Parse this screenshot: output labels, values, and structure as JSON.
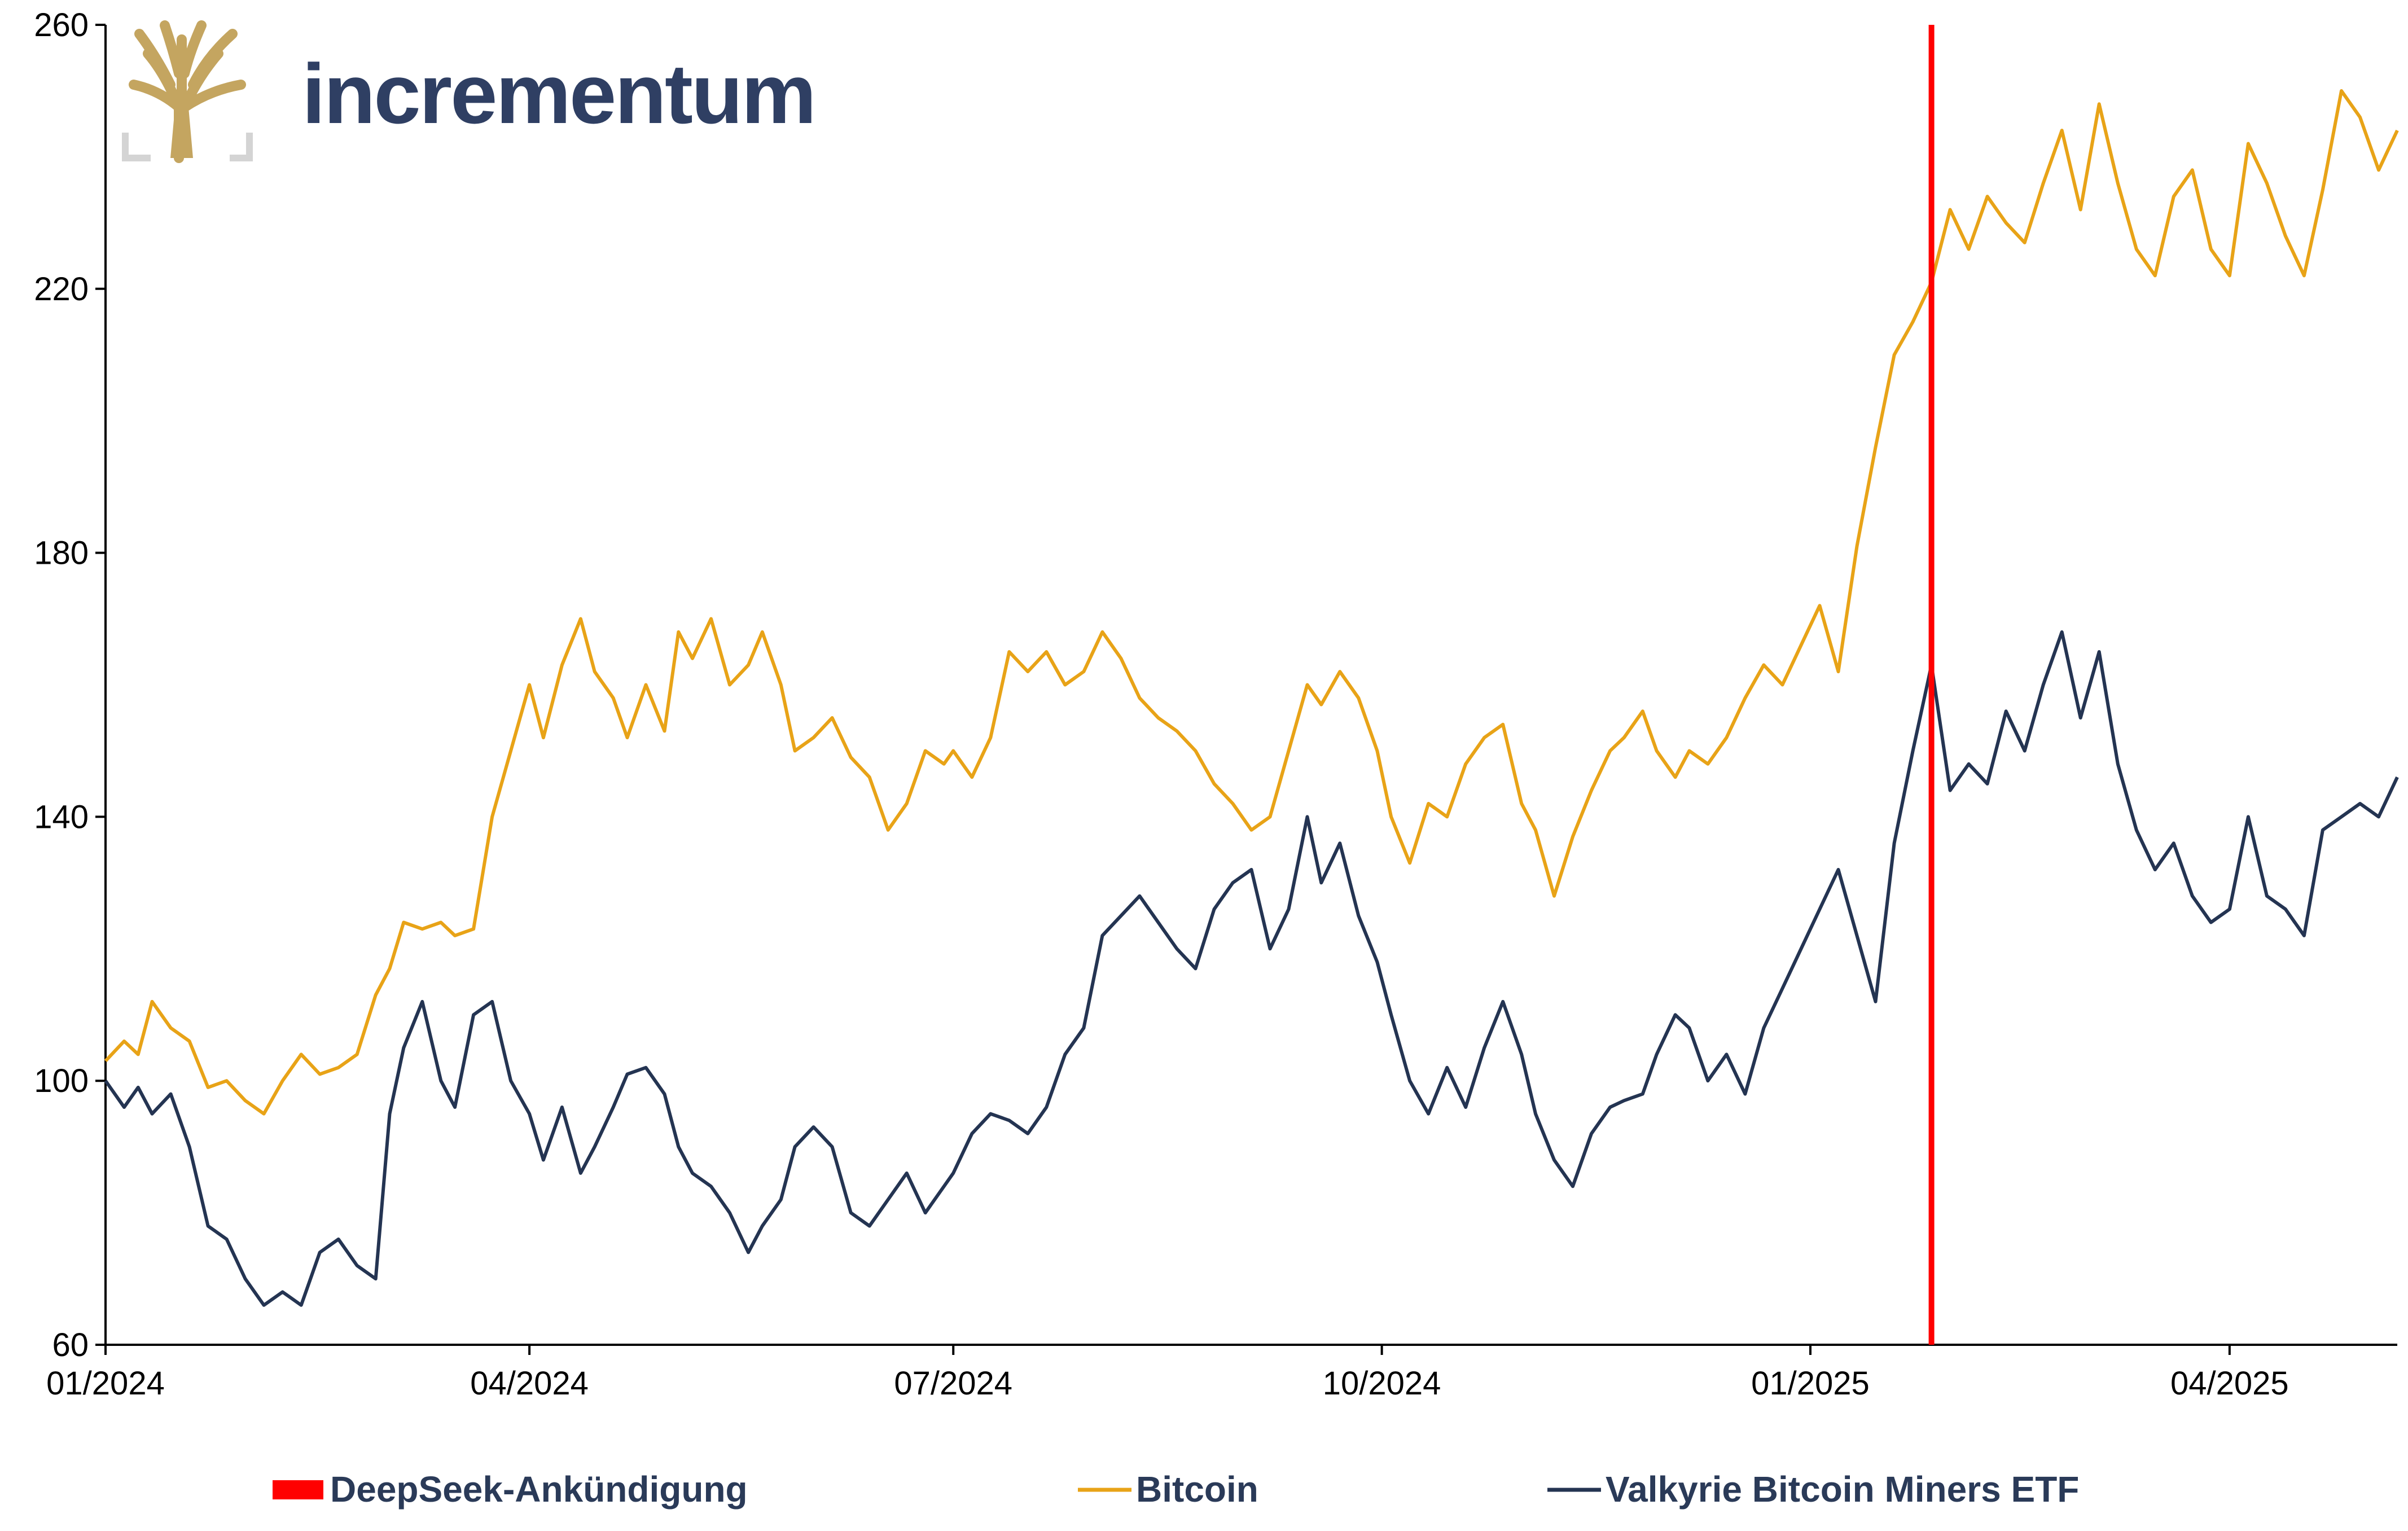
{
  "logo": {
    "brand_name": "incrementum",
    "brand_color": "#2f3f63",
    "tree_color": "#c4a560",
    "icon": "tree-logo-icon"
  },
  "chart_data": {
    "type": "line",
    "title": "",
    "xlabel": "",
    "ylabel": "",
    "ylim": [
      60,
      260
    ],
    "yticks": [
      60,
      100,
      140,
      180,
      220,
      260
    ],
    "x_range": [
      "2024-01-01",
      "2025-05-07"
    ],
    "xticks": [
      {
        "label": "01/2024",
        "date": "2024-01-01"
      },
      {
        "label": "04/2024",
        "date": "2024-04-01"
      },
      {
        "label": "07/2024",
        "date": "2024-07-01"
      },
      {
        "label": "10/2024",
        "date": "2024-10-01"
      },
      {
        "label": "01/2025",
        "date": "2025-01-01"
      },
      {
        "label": "04/2025",
        "date": "2025-04-01"
      }
    ],
    "grid": false,
    "legend_position": "bottom",
    "annotation": {
      "name": "DeepSeek-Ankündigung",
      "date": "2025-01-27",
      "color": "#ff0000"
    },
    "series": [
      {
        "name": "Bitcoin",
        "color": "#e8a317",
        "points": [
          [
            "2024-01-01",
            103
          ],
          [
            "2024-01-05",
            106
          ],
          [
            "2024-01-08",
            104
          ],
          [
            "2024-01-11",
            112
          ],
          [
            "2024-01-15",
            108
          ],
          [
            "2024-01-19",
            106
          ],
          [
            "2024-01-23",
            99
          ],
          [
            "2024-01-27",
            100
          ],
          [
            "2024-01-31",
            97
          ],
          [
            "2024-02-04",
            95
          ],
          [
            "2024-02-08",
            100
          ],
          [
            "2024-02-12",
            104
          ],
          [
            "2024-02-16",
            101
          ],
          [
            "2024-02-20",
            102
          ],
          [
            "2024-02-24",
            104
          ],
          [
            "2024-02-28",
            113
          ],
          [
            "2024-03-02",
            117
          ],
          [
            "2024-03-05",
            124
          ],
          [
            "2024-03-09",
            123
          ],
          [
            "2024-03-13",
            124
          ],
          [
            "2024-03-16",
            122
          ],
          [
            "2024-03-20",
            123
          ],
          [
            "2024-03-24",
            140
          ],
          [
            "2024-03-28",
            150
          ],
          [
            "2024-04-01",
            160
          ],
          [
            "2024-04-04",
            152
          ],
          [
            "2024-04-08",
            163
          ],
          [
            "2024-04-12",
            170
          ],
          [
            "2024-04-15",
            162
          ],
          [
            "2024-04-19",
            158
          ],
          [
            "2024-04-22",
            152
          ],
          [
            "2024-04-26",
            160
          ],
          [
            "2024-04-30",
            153
          ],
          [
            "2024-05-03",
            168
          ],
          [
            "2024-05-06",
            164
          ],
          [
            "2024-05-10",
            170
          ],
          [
            "2024-05-14",
            160
          ],
          [
            "2024-05-18",
            163
          ],
          [
            "2024-05-21",
            168
          ],
          [
            "2024-05-25",
            160
          ],
          [
            "2024-05-28",
            150
          ],
          [
            "2024-06-01",
            152
          ],
          [
            "2024-06-05",
            155
          ],
          [
            "2024-06-09",
            149
          ],
          [
            "2024-06-13",
            146
          ],
          [
            "2024-06-17",
            138
          ],
          [
            "2024-06-21",
            142
          ],
          [
            "2024-06-25",
            150
          ],
          [
            "2024-06-29",
            148
          ],
          [
            "2024-07-01",
            150
          ],
          [
            "2024-07-05",
            146
          ],
          [
            "2024-07-09",
            152
          ],
          [
            "2024-07-13",
            165
          ],
          [
            "2024-07-17",
            162
          ],
          [
            "2024-07-21",
            165
          ],
          [
            "2024-07-25",
            160
          ],
          [
            "2024-07-29",
            162
          ],
          [
            "2024-08-02",
            168
          ],
          [
            "2024-08-06",
            164
          ],
          [
            "2024-08-10",
            158
          ],
          [
            "2024-08-14",
            155
          ],
          [
            "2024-08-18",
            153
          ],
          [
            "2024-08-22",
            150
          ],
          [
            "2024-08-26",
            145
          ],
          [
            "2024-08-30",
            142
          ],
          [
            "2024-09-03",
            138
          ],
          [
            "2024-09-07",
            140
          ],
          [
            "2024-09-11",
            150
          ],
          [
            "2024-09-15",
            160
          ],
          [
            "2024-09-18",
            157
          ],
          [
            "2024-09-22",
            162
          ],
          [
            "2024-09-26",
            158
          ],
          [
            "2024-09-30",
            150
          ],
          [
            "2024-10-03",
            140
          ],
          [
            "2024-10-07",
            133
          ],
          [
            "2024-10-11",
            142
          ],
          [
            "2024-10-15",
            140
          ],
          [
            "2024-10-19",
            148
          ],
          [
            "2024-10-23",
            152
          ],
          [
            "2024-10-27",
            154
          ],
          [
            "2024-10-31",
            142
          ],
          [
            "2024-11-03",
            138
          ],
          [
            "2024-11-07",
            128
          ],
          [
            "2024-11-11",
            137
          ],
          [
            "2024-11-15",
            144
          ],
          [
            "2024-11-19",
            150
          ],
          [
            "2024-11-22",
            152
          ],
          [
            "2024-11-26",
            156
          ],
          [
            "2024-11-29",
            150
          ],
          [
            "2024-12-03",
            146
          ],
          [
            "2024-12-06",
            150
          ],
          [
            "2024-12-10",
            148
          ],
          [
            "2024-12-14",
            152
          ],
          [
            "2024-12-18",
            158
          ],
          [
            "2024-12-22",
            163
          ],
          [
            "2024-12-26",
            160
          ],
          [
            "2024-12-30",
            166
          ],
          [
            "2025-01-03",
            172
          ],
          [
            "2025-01-07",
            162
          ],
          [
            "2025-01-11",
            181
          ],
          [
            "2025-01-15",
            196
          ],
          [
            "2025-01-19",
            210
          ],
          [
            "2025-01-23",
            215
          ],
          [
            "2025-01-27",
            221
          ],
          [
            "2025-01-31",
            232
          ],
          [
            "2025-02-04",
            226
          ],
          [
            "2025-02-08",
            234
          ],
          [
            "2025-02-12",
            230
          ],
          [
            "2025-02-16",
            227
          ],
          [
            "2025-02-20",
            236
          ],
          [
            "2025-02-24",
            244
          ],
          [
            "2025-02-28",
            232
          ],
          [
            "2025-03-04",
            248
          ],
          [
            "2025-03-08",
            236
          ],
          [
            "2025-03-12",
            226
          ],
          [
            "2025-03-16",
            222
          ],
          [
            "2025-03-20",
            234
          ],
          [
            "2025-03-24",
            238
          ],
          [
            "2025-03-28",
            226
          ],
          [
            "2025-04-01",
            222
          ],
          [
            "2025-04-05",
            242
          ],
          [
            "2025-04-09",
            236
          ],
          [
            "2025-04-13",
            228
          ],
          [
            "2025-04-17",
            222
          ],
          [
            "2025-04-21",
            235
          ],
          [
            "2025-04-25",
            250
          ],
          [
            "2025-04-29",
            246
          ],
          [
            "2025-05-03",
            238
          ],
          [
            "2025-05-07",
            244
          ]
        ]
      },
      {
        "name": "Valkyrie Bitcoin Miners ETF",
        "color": "#243452",
        "points": [
          [
            "2024-01-01",
            100
          ],
          [
            "2024-01-05",
            96
          ],
          [
            "2024-01-08",
            99
          ],
          [
            "2024-01-11",
            95
          ],
          [
            "2024-01-15",
            98
          ],
          [
            "2024-01-19",
            90
          ],
          [
            "2024-01-23",
            78
          ],
          [
            "2024-01-27",
            76
          ],
          [
            "2024-01-31",
            70
          ],
          [
            "2024-02-04",
            66
          ],
          [
            "2024-02-08",
            68
          ],
          [
            "2024-02-12",
            66
          ],
          [
            "2024-02-16",
            74
          ],
          [
            "2024-02-20",
            76
          ],
          [
            "2024-02-24",
            72
          ],
          [
            "2024-02-28",
            70
          ],
          [
            "2024-03-02",
            95
          ],
          [
            "2024-03-05",
            105
          ],
          [
            "2024-03-09",
            112
          ],
          [
            "2024-03-13",
            100
          ],
          [
            "2024-03-16",
            96
          ],
          [
            "2024-03-20",
            110
          ],
          [
            "2024-03-24",
            112
          ],
          [
            "2024-03-28",
            100
          ],
          [
            "2024-04-01",
            95
          ],
          [
            "2024-04-04",
            88
          ],
          [
            "2024-04-08",
            96
          ],
          [
            "2024-04-12",
            86
          ],
          [
            "2024-04-15",
            90
          ],
          [
            "2024-04-19",
            96
          ],
          [
            "2024-04-22",
            101
          ],
          [
            "2024-04-26",
            102
          ],
          [
            "2024-04-30",
            98
          ],
          [
            "2024-05-03",
            90
          ],
          [
            "2024-05-06",
            86
          ],
          [
            "2024-05-10",
            84
          ],
          [
            "2024-05-14",
            80
          ],
          [
            "2024-05-18",
            74
          ],
          [
            "2024-05-21",
            78
          ],
          [
            "2024-05-25",
            82
          ],
          [
            "2024-05-28",
            90
          ],
          [
            "2024-06-01",
            93
          ],
          [
            "2024-06-05",
            90
          ],
          [
            "2024-06-09",
            80
          ],
          [
            "2024-06-13",
            78
          ],
          [
            "2024-06-17",
            82
          ],
          [
            "2024-06-21",
            86
          ],
          [
            "2024-06-25",
            80
          ],
          [
            "2024-06-29",
            84
          ],
          [
            "2024-07-01",
            86
          ],
          [
            "2024-07-05",
            92
          ],
          [
            "2024-07-09",
            95
          ],
          [
            "2024-07-13",
            94
          ],
          [
            "2024-07-17",
            92
          ],
          [
            "2024-07-21",
            96
          ],
          [
            "2024-07-25",
            104
          ],
          [
            "2024-07-29",
            108
          ],
          [
            "2024-08-02",
            122
          ],
          [
            "2024-08-06",
            125
          ],
          [
            "2024-08-10",
            128
          ],
          [
            "2024-08-14",
            124
          ],
          [
            "2024-08-18",
            120
          ],
          [
            "2024-08-22",
            117
          ],
          [
            "2024-08-26",
            126
          ],
          [
            "2024-08-30",
            130
          ],
          [
            "2024-09-03",
            132
          ],
          [
            "2024-09-07",
            120
          ],
          [
            "2024-09-11",
            126
          ],
          [
            "2024-09-15",
            140
          ],
          [
            "2024-09-18",
            130
          ],
          [
            "2024-09-22",
            136
          ],
          [
            "2024-09-26",
            125
          ],
          [
            "2024-09-30",
            118
          ],
          [
            "2024-10-03",
            110
          ],
          [
            "2024-10-07",
            100
          ],
          [
            "2024-10-11",
            95
          ],
          [
            "2024-10-15",
            102
          ],
          [
            "2024-10-19",
            96
          ],
          [
            "2024-10-23",
            105
          ],
          [
            "2024-10-27",
            112
          ],
          [
            "2024-10-31",
            104
          ],
          [
            "2024-11-03",
            95
          ],
          [
            "2024-11-07",
            88
          ],
          [
            "2024-11-11",
            84
          ],
          [
            "2024-11-15",
            92
          ],
          [
            "2024-11-19",
            96
          ],
          [
            "2024-11-22",
            97
          ],
          [
            "2024-11-26",
            98
          ],
          [
            "2024-11-29",
            104
          ],
          [
            "2024-12-03",
            110
          ],
          [
            "2024-12-06",
            108
          ],
          [
            "2024-12-10",
            100
          ],
          [
            "2024-12-14",
            104
          ],
          [
            "2024-12-18",
            98
          ],
          [
            "2024-12-22",
            108
          ],
          [
            "2024-12-26",
            114
          ],
          [
            "2024-12-30",
            120
          ],
          [
            "2025-01-03",
            126
          ],
          [
            "2025-01-07",
            132
          ],
          [
            "2025-01-11",
            122
          ],
          [
            "2025-01-15",
            112
          ],
          [
            "2025-01-19",
            136
          ],
          [
            "2025-01-23",
            150
          ],
          [
            "2025-01-27",
            163
          ],
          [
            "2025-01-31",
            144
          ],
          [
            "2025-02-04",
            148
          ],
          [
            "2025-02-08",
            145
          ],
          [
            "2025-02-12",
            156
          ],
          [
            "2025-02-16",
            150
          ],
          [
            "2025-02-20",
            160
          ],
          [
            "2025-02-24",
            168
          ],
          [
            "2025-02-28",
            155
          ],
          [
            "2025-03-04",
            165
          ],
          [
            "2025-03-08",
            148
          ],
          [
            "2025-03-12",
            138
          ],
          [
            "2025-03-16",
            132
          ],
          [
            "2025-03-20",
            136
          ],
          [
            "2025-03-24",
            128
          ],
          [
            "2025-03-28",
            124
          ],
          [
            "2025-04-01",
            126
          ],
          [
            "2025-04-05",
            140
          ],
          [
            "2025-04-09",
            128
          ],
          [
            "2025-04-13",
            126
          ],
          [
            "2025-04-17",
            122
          ],
          [
            "2025-04-21",
            138
          ],
          [
            "2025-04-25",
            140
          ],
          [
            "2025-04-29",
            142
          ],
          [
            "2025-05-03",
            140
          ],
          [
            "2025-05-07",
            146
          ]
        ]
      }
    ]
  },
  "legend": [
    {
      "label": "DeepSeek-Ankündigung",
      "kind": "bar",
      "color": "#ff0000"
    },
    {
      "label": "Bitcoin",
      "kind": "line",
      "color": "#e8a317"
    },
    {
      "label": "Valkyrie Bitcoin Miners ETF",
      "kind": "line",
      "color": "#243452"
    }
  ]
}
